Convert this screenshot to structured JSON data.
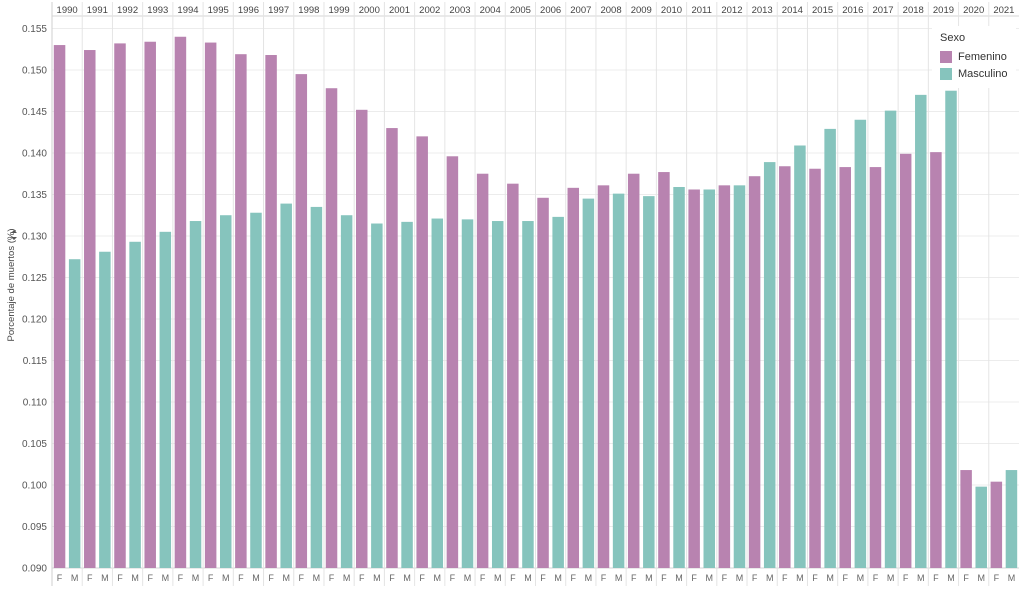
{
  "chart_data": {
    "type": "bar",
    "ylabel": "Porcentaje de muertos (%)",
    "ylim": [
      0.09,
      0.1565
    ],
    "yticks": [
      "0.090",
      "0.095",
      "0.100",
      "0.105",
      "0.110",
      "0.115",
      "0.120",
      "0.125",
      "0.130",
      "0.135",
      "0.140",
      "0.145",
      "0.150",
      "0.155"
    ],
    "grid": true,
    "legend_position": "top-right",
    "categories": [
      "1990",
      "1991",
      "1992",
      "1993",
      "1994",
      "1995",
      "1996",
      "1997",
      "1998",
      "1999",
      "2000",
      "2001",
      "2002",
      "2003",
      "2004",
      "2005",
      "2006",
      "2007",
      "2008",
      "2009",
      "2010",
      "2011",
      "2012",
      "2013",
      "2014",
      "2015",
      "2016",
      "2017",
      "2018",
      "2019",
      "2020",
      "2021"
    ],
    "sub_labels": [
      "F",
      "M"
    ],
    "legend_title": "Sexo",
    "series": [
      {
        "name": "Femenino",
        "color": "#b883b0",
        "values": [
          0.153,
          0.1524,
          0.1532,
          0.1534,
          0.154,
          0.1533,
          0.1519,
          0.1518,
          0.1495,
          0.1478,
          0.1452,
          0.143,
          0.142,
          0.1396,
          0.1375,
          0.1363,
          0.1346,
          0.1358,
          0.1361,
          0.1375,
          0.1377,
          0.1356,
          0.1361,
          0.1372,
          0.1384,
          0.1381,
          0.1383,
          0.1383,
          0.1399,
          0.1401,
          0.1018,
          0.1004
        ]
      },
      {
        "name": "Masculino",
        "color": "#86c4bd",
        "values": [
          0.1272,
          0.1281,
          0.1293,
          0.1305,
          0.1318,
          0.1325,
          0.1328,
          0.1339,
          0.1335,
          0.1325,
          0.1315,
          0.1317,
          0.1321,
          0.132,
          0.1318,
          0.1318,
          0.1323,
          0.1345,
          0.1351,
          0.1348,
          0.1359,
          0.1356,
          0.1361,
          0.1389,
          0.1409,
          0.1429,
          0.144,
          0.1451,
          0.147,
          0.1475,
          0.0998,
          0.1018
        ]
      }
    ]
  }
}
